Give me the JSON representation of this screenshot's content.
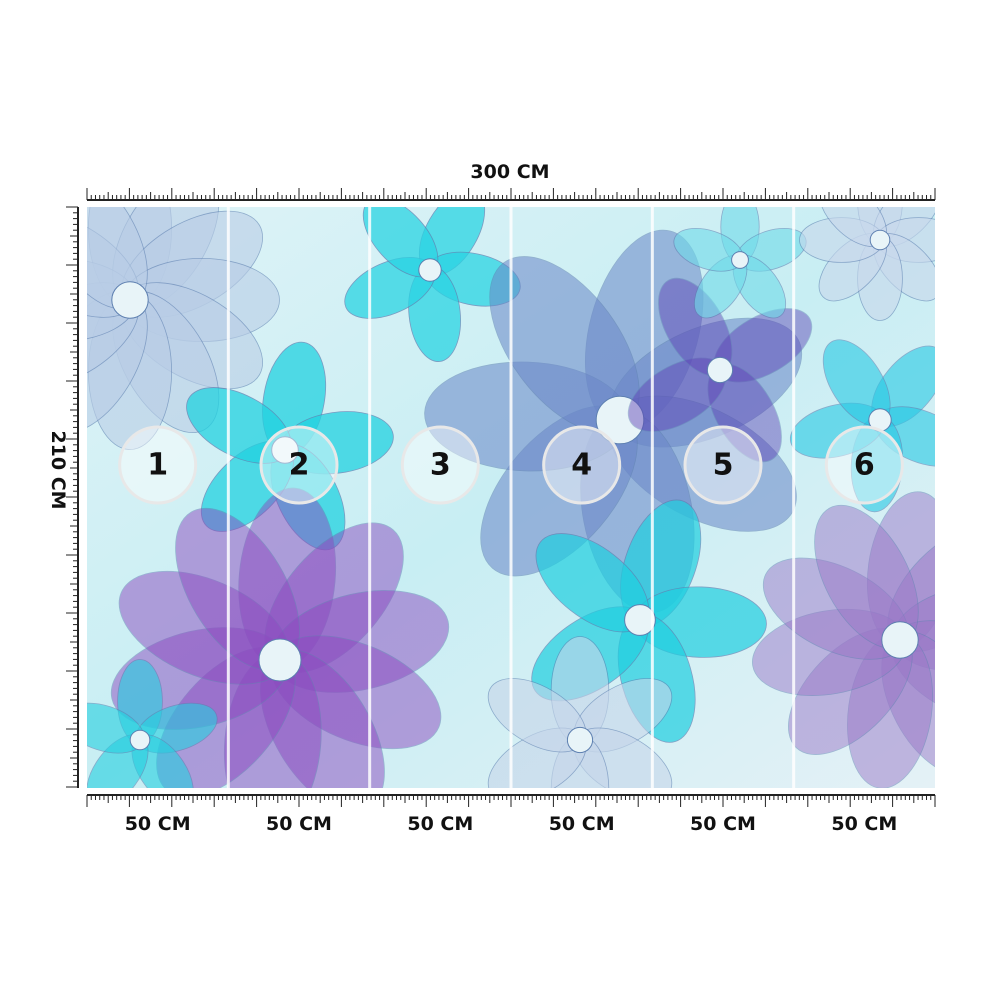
{
  "dimensions": {
    "width": "300 CM",
    "height": "210 CM"
  },
  "panels": [
    {
      "number": "1",
      "width": "50 CM"
    },
    {
      "number": "2",
      "width": "50 CM"
    },
    {
      "number": "3",
      "width": "50 CM"
    },
    {
      "number": "4",
      "width": "50 CM"
    },
    {
      "number": "5",
      "width": "50 CM"
    },
    {
      "number": "6",
      "width": "50 CM"
    }
  ]
}
